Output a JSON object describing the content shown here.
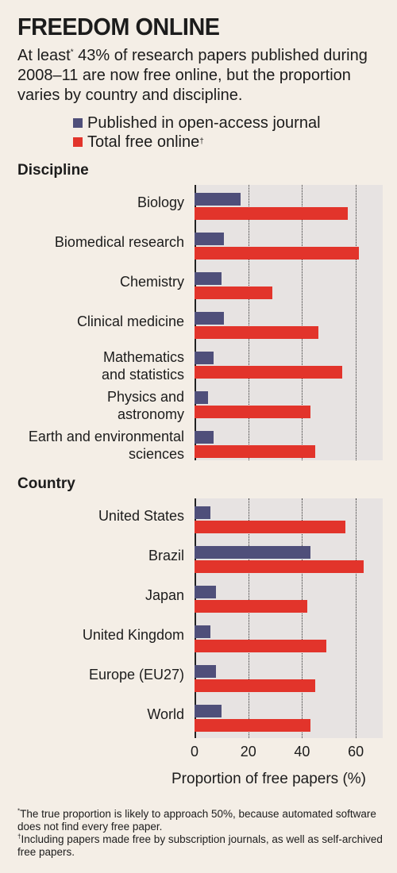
{
  "title": "FREEDOM ONLINE",
  "subtitle": {
    "pre": "At least",
    "mark": "*",
    "post": " 43% of research papers published during 2008–11 are now free online, but the proportion varies by country and discipline."
  },
  "legend": [
    {
      "label": "Published in open-access journal",
      "mark": "",
      "color": "#4f4f7a"
    },
    {
      "label": "Total free online",
      "mark": "†",
      "color": "#e2342b"
    }
  ],
  "colors": {
    "oa": "#4f4f7a",
    "total": "#e2342b",
    "panel": "#e7e3e2",
    "background": "#f4eee6"
  },
  "chart_data": [
    {
      "type": "bar",
      "orientation": "horizontal",
      "title": "Discipline",
      "categories": [
        "Biology",
        "Biomedical research",
        "Chemistry",
        "Clinical medicine",
        "Mathematics\nand statistics",
        "Physics and\nastronomy",
        "Earth and environmental\nsciences"
      ],
      "series": [
        {
          "name": "Published in open-access journal",
          "values": [
            17,
            11,
            10,
            11,
            7,
            5,
            7
          ]
        },
        {
          "name": "Total free online",
          "values": [
            57,
            61,
            29,
            46,
            55,
            43,
            45
          ]
        }
      ],
      "xlim": [
        0,
        70
      ],
      "grid": true
    },
    {
      "type": "bar",
      "orientation": "horizontal",
      "title": "Country",
      "categories": [
        "United States",
        "Brazil",
        "Japan",
        "United Kingdom",
        "Europe (EU27)",
        "World"
      ],
      "series": [
        {
          "name": "Published in open-access journal",
          "values": [
            6,
            43,
            8,
            6,
            8,
            10
          ]
        },
        {
          "name": "Total free online",
          "values": [
            56,
            63,
            42,
            49,
            45,
            43
          ]
        }
      ],
      "xlim": [
        0,
        70
      ],
      "xticks": [
        0,
        20,
        40,
        60
      ],
      "xlabel": "Proportion of free papers (%)",
      "grid": true
    }
  ],
  "footnotes": [
    {
      "mark": "*",
      "text": "The true proportion is likely to approach 50%, because automated software does not find every free paper."
    },
    {
      "mark": "†",
      "text": "Including papers made free by subscription journals, as well as self-archived free papers."
    }
  ]
}
